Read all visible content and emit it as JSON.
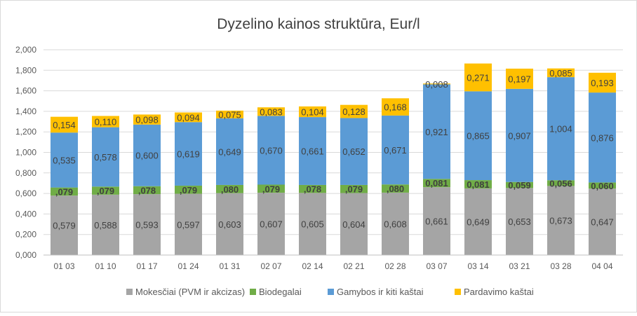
{
  "chart_data": {
    "type": "bar",
    "stacked": true,
    "title": "Dyzelino kainos struktūra, Eur/l",
    "xlabel": "",
    "ylabel": "",
    "ylim": [
      0,
      2.0
    ],
    "yticks": [
      "0,000",
      "0,200",
      "0,400",
      "0,600",
      "0,800",
      "1,000",
      "1,200",
      "1,400",
      "1,600",
      "1,800",
      "2,000"
    ],
    "grid": true,
    "legend_position": "bottom",
    "categories": [
      "01 03",
      "01 10",
      "01 17",
      "01 24",
      "01 31",
      "02 07",
      "02 14",
      "02 21",
      "02 28",
      "03 07",
      "03 14",
      "03 21",
      "03 28",
      "04 04"
    ],
    "series": [
      {
        "name": "Mokesčiai (PVM ir akcizas)",
        "color": "#a5a5a5",
        "label_bold": false,
        "values": [
          0.579,
          0.588,
          0.593,
          0.597,
          0.603,
          0.607,
          0.605,
          0.604,
          0.608,
          0.661,
          0.649,
          0.653,
          0.673,
          0.647
        ],
        "labels": [
          "0,579",
          "0,588",
          "0,593",
          "0,597",
          "0,603",
          "0,607",
          "0,605",
          "0,604",
          "0,608",
          "0,661",
          "0,649",
          "0,653",
          "0,673",
          "0,647"
        ]
      },
      {
        "name": "Biodegalai",
        "color": "#70ad47",
        "label_bold": true,
        "values": [
          0.079,
          0.079,
          0.078,
          0.079,
          0.08,
          0.079,
          0.078,
          0.079,
          0.08,
          0.081,
          0.081,
          0.059,
          0.056,
          0.06
        ],
        "labels": [
          ",079",
          ",079",
          ",078",
          ",079",
          ",080",
          ",079",
          ",078",
          ",079",
          ",080",
          "0,081",
          "0,081",
          "0,059",
          "0,056",
          "0,060"
        ]
      },
      {
        "name": "Gamybos ir kiti kaštai",
        "color": "#5b9bd5",
        "label_bold": false,
        "values": [
          0.535,
          0.578,
          0.6,
          0.619,
          0.649,
          0.67,
          0.661,
          0.652,
          0.671,
          0.921,
          0.865,
          0.907,
          1.004,
          0.876
        ],
        "labels": [
          "0,535",
          "0,578",
          "0,600",
          "0,619",
          "0,649",
          "0,670",
          "0,661",
          "0,652",
          "0,671",
          "0,921",
          "0,865",
          "0,907",
          "1,004",
          "0,876"
        ]
      },
      {
        "name": "Pardavimo kaštai",
        "color": "#ffc000",
        "label_bold": false,
        "values": [
          0.154,
          0.11,
          0.098,
          0.094,
          0.075,
          0.083,
          0.104,
          0.128,
          0.168,
          0.008,
          0.271,
          0.197,
          0.085,
          0.193
        ],
        "labels": [
          "0,154",
          "0,110",
          "0,098",
          "0,094",
          "0,075",
          "0,083",
          "0,104",
          "0,128",
          "0,168",
          "0,008",
          "0,271",
          "0,197",
          "0,085",
          "0,193"
        ]
      }
    ]
  }
}
